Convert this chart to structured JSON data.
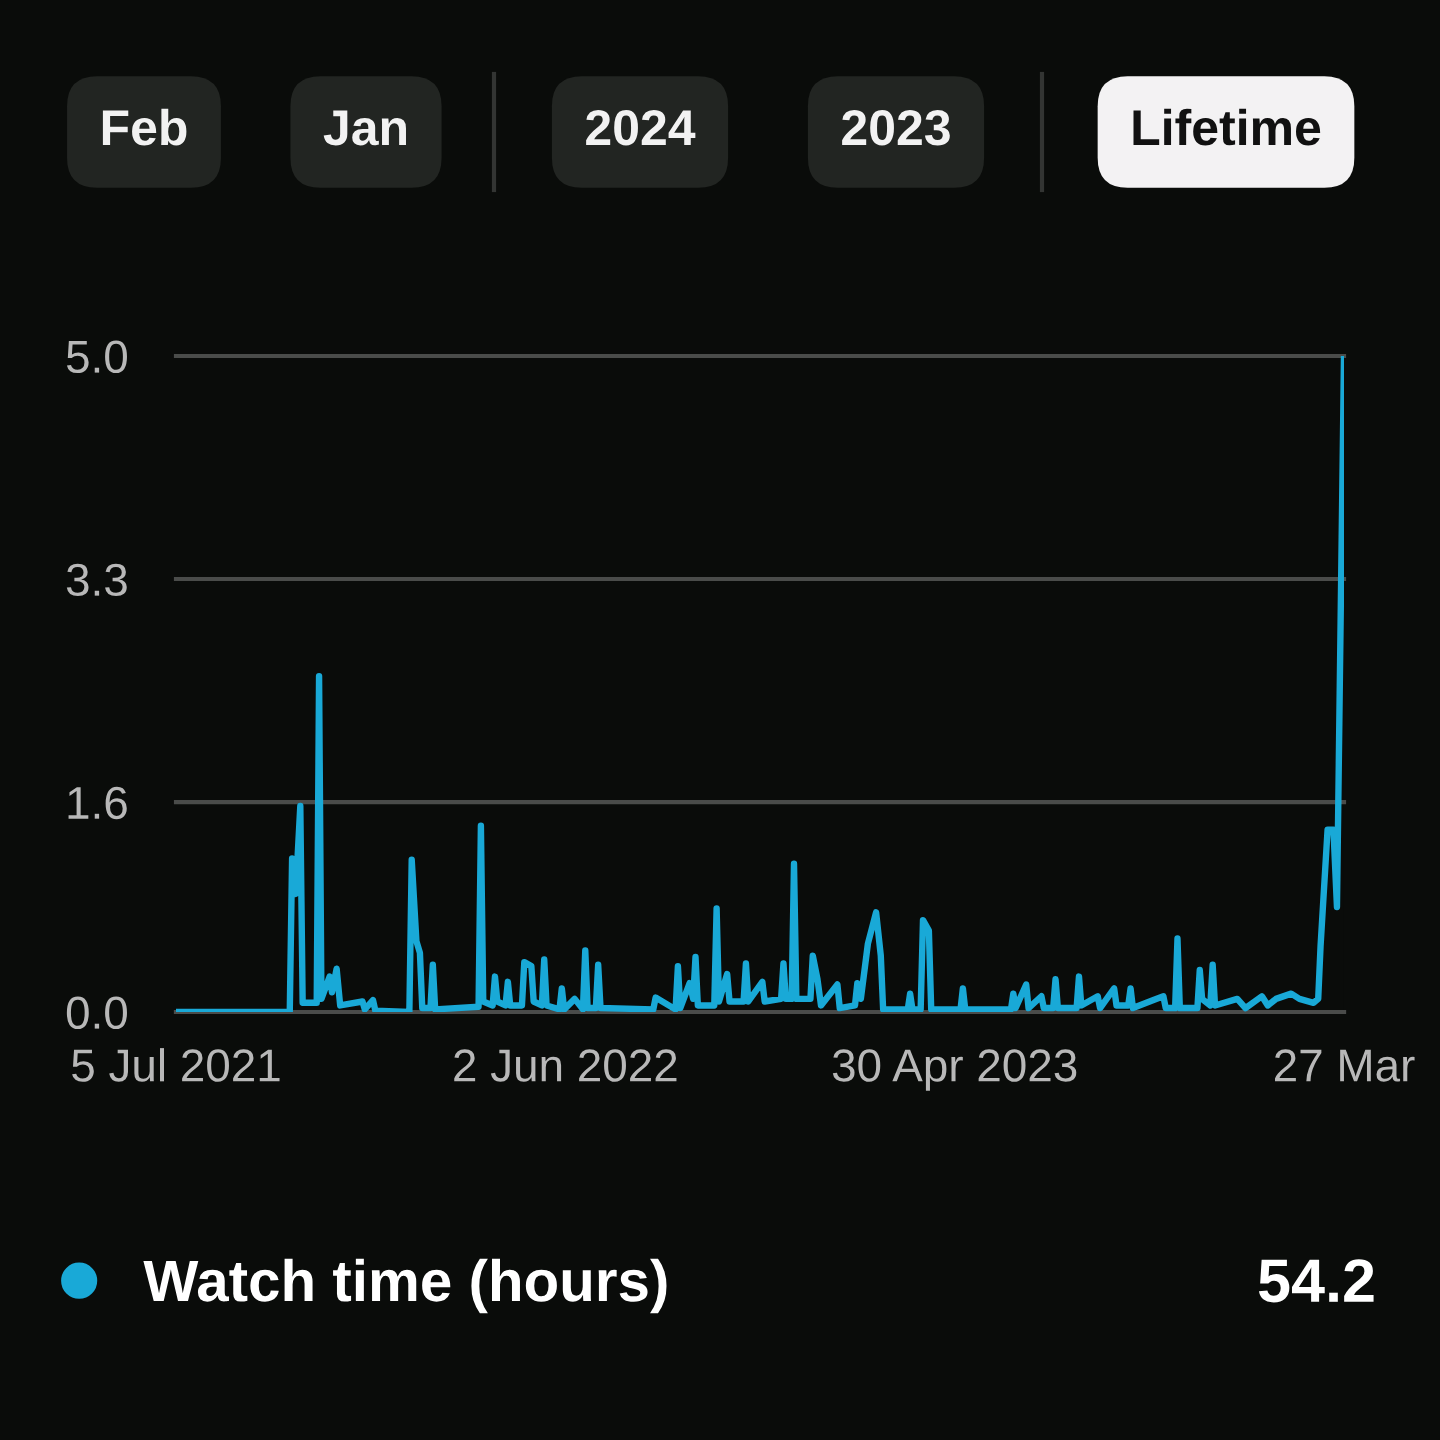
{
  "chart_data": {
    "type": "line",
    "annotations": [
      "Feb",
      "Jan",
      "2024",
      "2023",
      "Lifetime",
      "54.2"
    ],
    "xlim": [
      "2021-07-05",
      "2024-03-27"
    ],
    "xticks": [
      {
        "value": "2021-07-05",
        "label": "5 Jul 2021"
      },
      {
        "value": "2022-06-02",
        "label": "2 Jun 2022"
      },
      {
        "value": "2023-04-30",
        "label": "30 Apr 2023"
      },
      {
        "value": "2024-03-27",
        "label": "27 Mar"
      }
    ],
    "ylim": [
      0,
      5
    ],
    "yticks": [
      {
        "value": 0,
        "label": "0.0"
      },
      1.6,
      3.3,
      {
        "value": 5,
        "label": "5.0"
      }
    ],
    "grid": "y",
    "legend": "bottom",
    "line_style": "solid",
    "series": [
      {
        "name": "Watch time (hours)",
        "color": "#19a9d7",
        "x": [
          "2021-07-05",
          "2021-10-10",
          "2021-10-12",
          "2021-10-15",
          "2021-10-19",
          "2021-10-21",
          "2021-11-02",
          "2021-11-04",
          "2021-11-06",
          "2021-11-13",
          "2021-11-15",
          "2021-11-19",
          "2021-11-22",
          "2021-12-11",
          "2021-12-13",
          "2021-12-20",
          "2021-12-22",
          "2022-01-20",
          "2022-01-22",
          "2022-01-26",
          "2022-01-29",
          "2022-01-31",
          "2022-02-07",
          "2022-02-09",
          "2022-02-11",
          "2022-03-20",
          "2022-03-22",
          "2022-03-24",
          "2022-04-01",
          "2022-04-03",
          "2022-04-05",
          "2022-04-12",
          "2022-04-14",
          "2022-04-16",
          "2022-04-26",
          "2022-04-28",
          "2022-05-04",
          "2022-05-06",
          "2022-05-13",
          "2022-05-15",
          "2022-05-17",
          "2022-05-28",
          "2022-05-30",
          "2022-06-01",
          "2022-06-10",
          "2022-06-17",
          "2022-06-19",
          "2022-06-21",
          "2022-06-28",
          "2022-06-30",
          "2022-07-02",
          "2022-08-16",
          "2022-08-18",
          "2022-09-04",
          "2022-09-06",
          "2022-09-08",
          "2022-09-16",
          "2022-09-19",
          "2022-09-21",
          "2022-09-23",
          "2022-10-07",
          "2022-10-09",
          "2022-10-11",
          "2022-10-18",
          "2022-10-20",
          "2022-11-01",
          "2022-11-03",
          "2022-11-05",
          "2022-11-17",
          "2022-11-19",
          "2022-12-03",
          "2022-12-05",
          "2022-12-07",
          "2022-12-12",
          "2022-12-14",
          "2022-12-16",
          "2022-12-28",
          "2022-12-30",
          "2023-01-03",
          "2023-01-06",
          "2023-01-20",
          "2023-01-22",
          "2023-02-04",
          "2023-02-06",
          "2023-02-09",
          "2023-02-15",
          "2023-02-22",
          "2023-02-26",
          "2023-02-28",
          "2023-03-21",
          "2023-03-23",
          "2023-03-25",
          "2023-04-01",
          "2023-04-03",
          "2023-04-08",
          "2023-04-10",
          "2023-05-05",
          "2023-05-07",
          "2023-05-09",
          "2023-06-17",
          "2023-06-19",
          "2023-06-21",
          "2023-06-30",
          "2023-07-02",
          "2023-07-13",
          "2023-07-15",
          "2023-07-23",
          "2023-07-25",
          "2023-07-27",
          "2023-08-12",
          "2023-08-14",
          "2023-08-16",
          "2023-08-30",
          "2023-09-01",
          "2023-09-13",
          "2023-09-15",
          "2023-09-25",
          "2023-09-27",
          "2023-09-29",
          "2023-10-16",
          "2023-10-25",
          "2023-10-27",
          "2023-11-04",
          "2023-11-06",
          "2023-11-08",
          "2023-11-23",
          "2023-11-25",
          "2023-11-27",
          "2023-12-04",
          "2023-12-06",
          "2023-12-08",
          "2023-12-27",
          "2024-01-03",
          "2024-01-17",
          "2024-01-22",
          "2024-01-29",
          "2024-02-11",
          "2024-02-18",
          "2024-03-01",
          "2024-03-05",
          "2024-03-07",
          "2024-03-13",
          "2024-03-18",
          "2024-03-21",
          "2024-03-27"
        ],
        "values": [
          0.0,
          0.0,
          1.17,
          0.9,
          1.57,
          0.07,
          0.07,
          2.56,
          0.1,
          0.27,
          0.15,
          0.33,
          0.05,
          0.08,
          0.02,
          0.09,
          0.01,
          0.0,
          1.16,
          0.54,
          0.45,
          0.03,
          0.03,
          0.36,
          0.02,
          0.04,
          1.42,
          0.08,
          0.05,
          0.27,
          0.08,
          0.05,
          0.23,
          0.05,
          0.05,
          0.38,
          0.35,
          0.08,
          0.05,
          0.4,
          0.05,
          0.02,
          0.18,
          0.02,
          0.1,
          0.02,
          0.47,
          0.03,
          0.03,
          0.36,
          0.03,
          0.02,
          0.11,
          0.02,
          0.35,
          0.03,
          0.22,
          0.1,
          0.42,
          0.05,
          0.05,
          0.79,
          0.08,
          0.29,
          0.08,
          0.08,
          0.37,
          0.08,
          0.23,
          0.08,
          0.1,
          0.37,
          0.1,
          0.1,
          1.13,
          0.1,
          0.1,
          0.43,
          0.25,
          0.05,
          0.21,
          0.03,
          0.05,
          0.22,
          0.1,
          0.52,
          0.76,
          0.43,
          0.02,
          0.02,
          0.14,
          0.02,
          0.02,
          0.7,
          0.62,
          0.02,
          0.02,
          0.18,
          0.02,
          0.02,
          0.14,
          0.03,
          0.21,
          0.03,
          0.12,
          0.03,
          0.03,
          0.25,
          0.03,
          0.03,
          0.27,
          0.05,
          0.12,
          0.03,
          0.18,
          0.05,
          0.05,
          0.18,
          0.03,
          0.09,
          0.12,
          0.03,
          0.03,
          0.56,
          0.03,
          0.03,
          0.32,
          0.1,
          0.05,
          0.36,
          0.05,
          0.1,
          0.03,
          0.12,
          0.05,
          0.1,
          0.14,
          0.1,
          0.07,
          0.1,
          0.5,
          1.39,
          1.39,
          0.8,
          5.0
        ]
      }
    ]
  }
}
